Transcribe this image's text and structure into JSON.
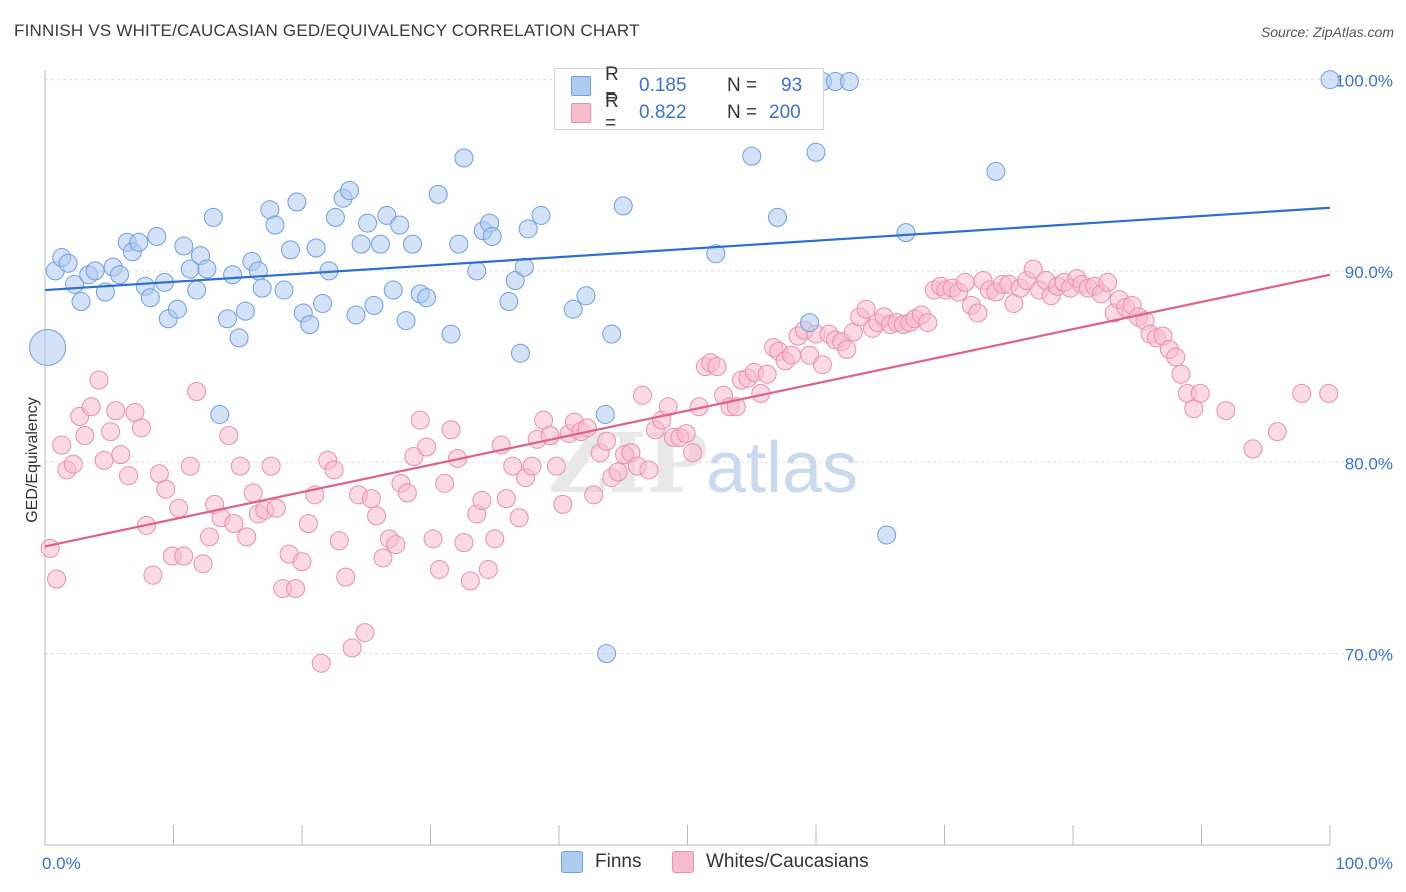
{
  "header": {
    "title": "FINNISH VS WHITE/CAUCASIAN GED/EQUIVALENCY CORRELATION CHART",
    "source": "Source: ZipAtlas.com"
  },
  "legend": {
    "rows": [
      {
        "r_label": "R =",
        "r_value": "0.185",
        "n_label": "N =",
        "n_value": "93"
      },
      {
        "r_label": "R =",
        "r_value": "0.822",
        "n_label": "N =",
        "n_value": "200"
      }
    ]
  },
  "bottom_legend": {
    "finns": "Finns",
    "whites": "Whites/Caucasians"
  },
  "watermark": {
    "zip": "ZIP",
    "atlas": "atlas"
  },
  "colors": {
    "finns_fill": "#aecbf0",
    "finns_stroke": "#6f9fe0",
    "finns_line": "#2d6fcf",
    "whites_fill": "#f7bccd",
    "whites_stroke": "#eb8fab",
    "whites_line": "#e0608a",
    "tick_label": "#3a73d4",
    "grid": "#dddddd",
    "axis": "#bbbbbb"
  },
  "chart_data": {
    "type": "scatter",
    "title": "FINNISH VS WHITE/CAUCASIAN GED/EQUIVALENCY CORRELATION CHART",
    "xlabel": "",
    "ylabel": "GED/Equivalency",
    "xlim": [
      0,
      100
    ],
    "ylim": [
      60,
      100.5
    ],
    "x_tick_labels": [
      "0.0%",
      "100.0%"
    ],
    "y_ticks": [
      70,
      80,
      90,
      100
    ],
    "y_tick_labels": [
      "70.0%",
      "80.0%",
      "90.0%",
      "100.0%"
    ],
    "grid": true,
    "series": [
      {
        "name": "Finns",
        "r": 0.185,
        "n": 93,
        "trend": [
          [
            0,
            89.0
          ],
          [
            100,
            93.3
          ]
        ],
        "points": [
          [
            0.2,
            86.0
          ],
          [
            0.8,
            90.0
          ],
          [
            1.3,
            90.7
          ],
          [
            1.8,
            90.4
          ],
          [
            2.3,
            89.3
          ],
          [
            2.8,
            88.4
          ],
          [
            3.4,
            89.8
          ],
          [
            3.9,
            90.0
          ],
          [
            4.7,
            88.9
          ],
          [
            5.3,
            90.2
          ],
          [
            5.8,
            89.8
          ],
          [
            6.4,
            91.5
          ],
          [
            6.8,
            91.0
          ],
          [
            7.3,
            91.5
          ],
          [
            7.8,
            89.2
          ],
          [
            8.2,
            88.6
          ],
          [
            8.7,
            91.8
          ],
          [
            9.3,
            89.4
          ],
          [
            9.6,
            87.5
          ],
          [
            10.3,
            88.0
          ],
          [
            10.8,
            91.3
          ],
          [
            11.3,
            90.1
          ],
          [
            11.8,
            89.0
          ],
          [
            12.1,
            90.8
          ],
          [
            12.6,
            90.1
          ],
          [
            13.1,
            92.8
          ],
          [
            13.6,
            82.5
          ],
          [
            14.2,
            87.5
          ],
          [
            14.6,
            89.8
          ],
          [
            15.1,
            86.5
          ],
          [
            15.6,
            87.9
          ],
          [
            16.1,
            90.5
          ],
          [
            16.6,
            90.0
          ],
          [
            16.9,
            89.1
          ],
          [
            17.5,
            93.2
          ],
          [
            17.9,
            92.4
          ],
          [
            18.6,
            89.0
          ],
          [
            19.1,
            91.1
          ],
          [
            19.6,
            93.6
          ],
          [
            20.1,
            87.8
          ],
          [
            20.6,
            87.2
          ],
          [
            21.1,
            91.2
          ],
          [
            21.6,
            88.3
          ],
          [
            22.1,
            90.0
          ],
          [
            22.6,
            92.8
          ],
          [
            23.2,
            93.8
          ],
          [
            23.7,
            94.2
          ],
          [
            24.2,
            87.7
          ],
          [
            24.6,
            91.4
          ],
          [
            25.1,
            92.5
          ],
          [
            25.6,
            88.2
          ],
          [
            26.1,
            91.4
          ],
          [
            26.6,
            92.9
          ],
          [
            27.1,
            89.0
          ],
          [
            27.6,
            92.4
          ],
          [
            28.1,
            87.4
          ],
          [
            28.6,
            91.4
          ],
          [
            29.2,
            88.8
          ],
          [
            29.7,
            88.6
          ],
          [
            30.6,
            94.0
          ],
          [
            31.6,
            86.7
          ],
          [
            32.2,
            91.4
          ],
          [
            32.6,
            95.9
          ],
          [
            33.6,
            90.0
          ],
          [
            34.1,
            92.1
          ],
          [
            34.6,
            92.5
          ],
          [
            34.8,
            91.8
          ],
          [
            36.1,
            88.4
          ],
          [
            36.6,
            89.5
          ],
          [
            37.0,
            85.7
          ],
          [
            37.3,
            90.2
          ],
          [
            37.6,
            92.2
          ],
          [
            38.6,
            92.9
          ],
          [
            41.0,
            98.3
          ],
          [
            41.1,
            88.0
          ],
          [
            42.1,
            88.7
          ],
          [
            43.7,
            70.0
          ],
          [
            43.6,
            82.5
          ],
          [
            44.1,
            86.7
          ],
          [
            45.0,
            93.4
          ],
          [
            52.2,
            90.9
          ],
          [
            55.0,
            96.0
          ],
          [
            57.0,
            92.8
          ],
          [
            59.0,
            98.3
          ],
          [
            59.5,
            87.3
          ],
          [
            60.0,
            96.2
          ],
          [
            60.5,
            99.9
          ],
          [
            61.5,
            99.9
          ],
          [
            62.6,
            99.9
          ],
          [
            67.0,
            92.0
          ],
          [
            65.5,
            76.2
          ],
          [
            74.0,
            95.2
          ],
          [
            100.0,
            100.0
          ]
        ]
      },
      {
        "name": "Whites/Caucasians",
        "r": 0.822,
        "n": 200,
        "trend": [
          [
            0,
            75.6
          ],
          [
            100,
            89.8
          ]
        ],
        "points": [
          [
            0.4,
            75.5
          ],
          [
            0.9,
            73.9
          ],
          [
            1.3,
            80.9
          ],
          [
            1.7,
            79.6
          ],
          [
            2.2,
            79.9
          ],
          [
            2.7,
            82.4
          ],
          [
            3.1,
            81.4
          ],
          [
            3.6,
            82.9
          ],
          [
            4.2,
            84.3
          ],
          [
            4.6,
            80.1
          ],
          [
            5.1,
            81.6
          ],
          [
            5.5,
            82.7
          ],
          [
            5.9,
            80.4
          ],
          [
            6.5,
            79.3
          ],
          [
            7.0,
            82.6
          ],
          [
            7.5,
            81.8
          ],
          [
            7.9,
            76.7
          ],
          [
            8.4,
            74.1
          ],
          [
            8.9,
            79.4
          ],
          [
            9.4,
            78.6
          ],
          [
            9.9,
            75.1
          ],
          [
            10.4,
            77.6
          ],
          [
            10.8,
            75.1
          ],
          [
            11.3,
            79.8
          ],
          [
            11.8,
            83.7
          ],
          [
            12.3,
            74.7
          ],
          [
            12.8,
            76.1
          ],
          [
            13.2,
            77.8
          ],
          [
            13.7,
            77.1
          ],
          [
            14.3,
            81.4
          ],
          [
            14.7,
            76.8
          ],
          [
            15.2,
            79.8
          ],
          [
            15.7,
            76.1
          ],
          [
            16.2,
            78.4
          ],
          [
            16.6,
            77.3
          ],
          [
            17.1,
            77.5
          ],
          [
            17.6,
            79.8
          ],
          [
            18.0,
            77.6
          ],
          [
            18.5,
            73.4
          ],
          [
            19.0,
            75.2
          ],
          [
            19.5,
            73.4
          ],
          [
            20.0,
            74.8
          ],
          [
            20.5,
            76.8
          ],
          [
            21.0,
            78.3
          ],
          [
            21.5,
            69.5
          ],
          [
            22.0,
            80.1
          ],
          [
            22.5,
            79.6
          ],
          [
            22.9,
            75.9
          ],
          [
            23.4,
            74.0
          ],
          [
            23.9,
            70.3
          ],
          [
            24.4,
            78.3
          ],
          [
            24.9,
            71.1
          ],
          [
            25.4,
            78.1
          ],
          [
            25.8,
            77.2
          ],
          [
            26.3,
            75.0
          ],
          [
            26.8,
            76.0
          ],
          [
            27.3,
            75.7
          ],
          [
            27.7,
            78.9
          ],
          [
            28.2,
            78.4
          ],
          [
            28.7,
            80.3
          ],
          [
            29.2,
            82.2
          ],
          [
            29.7,
            80.8
          ],
          [
            30.2,
            76.0
          ],
          [
            30.7,
            74.4
          ],
          [
            31.1,
            78.9
          ],
          [
            31.6,
            81.7
          ],
          [
            32.1,
            80.2
          ],
          [
            32.6,
            75.8
          ],
          [
            33.1,
            73.8
          ],
          [
            33.6,
            77.3
          ],
          [
            34.0,
            78.0
          ],
          [
            34.5,
            74.4
          ],
          [
            35.0,
            76.0
          ],
          [
            35.5,
            80.9
          ],
          [
            35.9,
            78.1
          ],
          [
            36.4,
            79.8
          ],
          [
            36.9,
            77.1
          ],
          [
            37.4,
            79.2
          ],
          [
            37.9,
            79.8
          ],
          [
            38.3,
            81.2
          ],
          [
            38.8,
            82.2
          ],
          [
            39.3,
            81.4
          ],
          [
            39.8,
            79.8
          ],
          [
            40.3,
            77.8
          ],
          [
            40.8,
            81.5
          ],
          [
            41.2,
            82.1
          ],
          [
            41.7,
            81.6
          ],
          [
            42.2,
            81.8
          ],
          [
            42.7,
            78.3
          ],
          [
            43.2,
            80.5
          ],
          [
            43.7,
            81.1
          ],
          [
            44.1,
            79.2
          ],
          [
            44.6,
            79.5
          ],
          [
            45.1,
            80.4
          ],
          [
            45.6,
            80.5
          ],
          [
            46.1,
            79.8
          ],
          [
            46.5,
            83.5
          ],
          [
            47.0,
            79.6
          ],
          [
            47.5,
            81.7
          ],
          [
            48.0,
            82.2
          ],
          [
            48.5,
            82.9
          ],
          [
            48.9,
            81.3
          ],
          [
            49.4,
            81.3
          ],
          [
            49.9,
            81.5
          ],
          [
            50.4,
            80.5
          ],
          [
            50.9,
            82.9
          ],
          [
            51.4,
            85.0
          ],
          [
            51.8,
            85.2
          ],
          [
            52.3,
            85.0
          ],
          [
            52.8,
            83.5
          ],
          [
            53.3,
            82.9
          ],
          [
            53.8,
            82.9
          ],
          [
            54.2,
            84.3
          ],
          [
            54.7,
            84.4
          ],
          [
            55.2,
            84.7
          ],
          [
            55.7,
            83.6
          ],
          [
            56.2,
            84.6
          ],
          [
            56.7,
            86.0
          ],
          [
            57.1,
            85.8
          ],
          [
            57.6,
            85.3
          ],
          [
            58.1,
            85.6
          ],
          [
            58.6,
            86.6
          ],
          [
            59.1,
            86.9
          ],
          [
            59.5,
            85.6
          ],
          [
            60.0,
            86.7
          ],
          [
            60.5,
            85.1
          ],
          [
            61.0,
            86.7
          ],
          [
            61.5,
            86.4
          ],
          [
            62.0,
            86.3
          ],
          [
            62.4,
            85.9
          ],
          [
            62.9,
            86.8
          ],
          [
            63.4,
            87.6
          ],
          [
            63.9,
            88.0
          ],
          [
            64.4,
            87.0
          ],
          [
            64.8,
            87.3
          ],
          [
            65.3,
            87.6
          ],
          [
            65.8,
            87.2
          ],
          [
            66.3,
            87.3
          ],
          [
            66.8,
            87.2
          ],
          [
            67.3,
            87.3
          ],
          [
            67.7,
            87.5
          ],
          [
            68.2,
            87.7
          ],
          [
            68.7,
            87.3
          ],
          [
            69.2,
            89.0
          ],
          [
            69.7,
            89.2
          ],
          [
            70.1,
            89.0
          ],
          [
            70.6,
            89.1
          ],
          [
            71.1,
            88.9
          ],
          [
            71.6,
            89.4
          ],
          [
            72.1,
            88.2
          ],
          [
            72.6,
            87.8
          ],
          [
            73.0,
            89.5
          ],
          [
            73.5,
            89.0
          ],
          [
            74.0,
            88.9
          ],
          [
            74.5,
            89.3
          ],
          [
            75.0,
            89.3
          ],
          [
            75.4,
            88.3
          ],
          [
            75.9,
            89.1
          ],
          [
            76.4,
            89.5
          ],
          [
            76.9,
            90.1
          ],
          [
            77.4,
            89.0
          ],
          [
            77.9,
            89.5
          ],
          [
            78.3,
            88.7
          ],
          [
            78.8,
            89.2
          ],
          [
            79.3,
            89.4
          ],
          [
            79.8,
            89.1
          ],
          [
            80.3,
            89.6
          ],
          [
            80.7,
            89.3
          ],
          [
            81.2,
            89.1
          ],
          [
            81.7,
            89.2
          ],
          [
            82.2,
            88.8
          ],
          [
            82.7,
            89.4
          ],
          [
            83.2,
            87.8
          ],
          [
            83.6,
            88.5
          ],
          [
            84.1,
            88.1
          ],
          [
            84.6,
            88.2
          ],
          [
            85.1,
            87.6
          ],
          [
            85.6,
            87.4
          ],
          [
            86.0,
            86.7
          ],
          [
            86.5,
            86.5
          ],
          [
            87.0,
            86.6
          ],
          [
            87.5,
            85.9
          ],
          [
            88.0,
            85.5
          ],
          [
            88.4,
            84.6
          ],
          [
            88.9,
            83.6
          ],
          [
            89.4,
            82.8
          ],
          [
            89.9,
            83.6
          ],
          [
            91.9,
            82.7
          ],
          [
            94.0,
            80.7
          ],
          [
            95.9,
            81.6
          ],
          [
            97.8,
            83.6
          ],
          [
            99.9,
            83.6
          ]
        ]
      }
    ]
  }
}
